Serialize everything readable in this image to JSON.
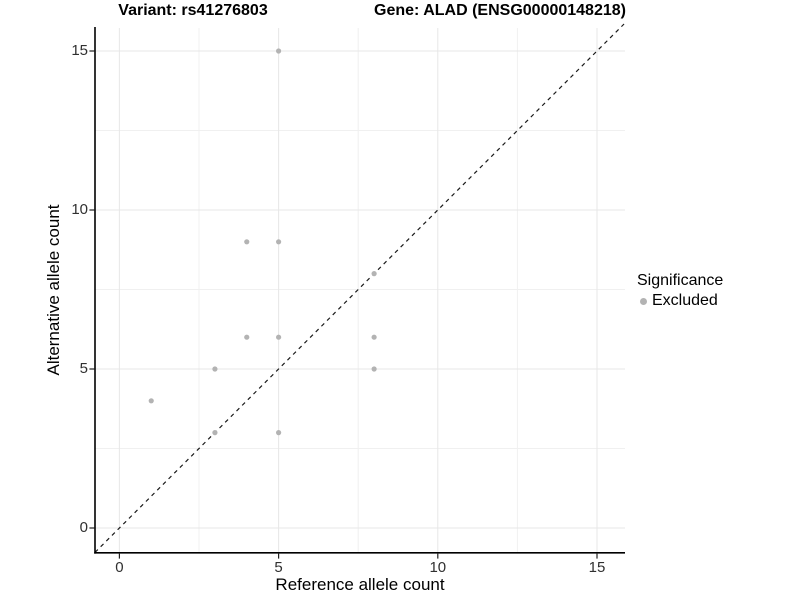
{
  "chart_data": {
    "type": "scatter",
    "title_left": "Variant: rs41276803",
    "title_right": "Gene: ALAD (ENSG00000148218)",
    "xlabel": "Reference allele count",
    "ylabel": "Alternative allele count",
    "xlim": [
      0,
      15
    ],
    "ylim": [
      0,
      15
    ],
    "x_ticks": [
      0,
      5,
      10,
      15
    ],
    "y_ticks": [
      0,
      5,
      10,
      15
    ],
    "x_minor_ticks": [
      2.5,
      7.5,
      12.5
    ],
    "y_minor_ticks": [
      2.5,
      7.5,
      12.5
    ],
    "grid": true,
    "identity_line": {
      "style": "dashed",
      "slope": 1,
      "intercept": 0
    },
    "series": [
      {
        "name": "Excluded",
        "points": [
          [
            1,
            4
          ],
          [
            3,
            3
          ],
          [
            3,
            5
          ],
          [
            4,
            6
          ],
          [
            4,
            9
          ],
          [
            5,
            3
          ],
          [
            5,
            6
          ],
          [
            5,
            9
          ],
          [
            5,
            15
          ],
          [
            8,
            5
          ],
          [
            8,
            6
          ],
          [
            8,
            8
          ]
        ]
      }
    ],
    "legend": {
      "title": "Significance",
      "position": "right",
      "items": [
        {
          "label": "Excluded",
          "marker": "circle"
        }
      ]
    }
  },
  "colors": {
    "point": "#b3b3b3",
    "dashed_line": "#1a1a1a",
    "axis_line": "#000000",
    "tick_mark": "#222222",
    "grid_major": "#e7e7e7",
    "grid_minor": "#f0f0f0",
    "background": "#ffffff"
  }
}
